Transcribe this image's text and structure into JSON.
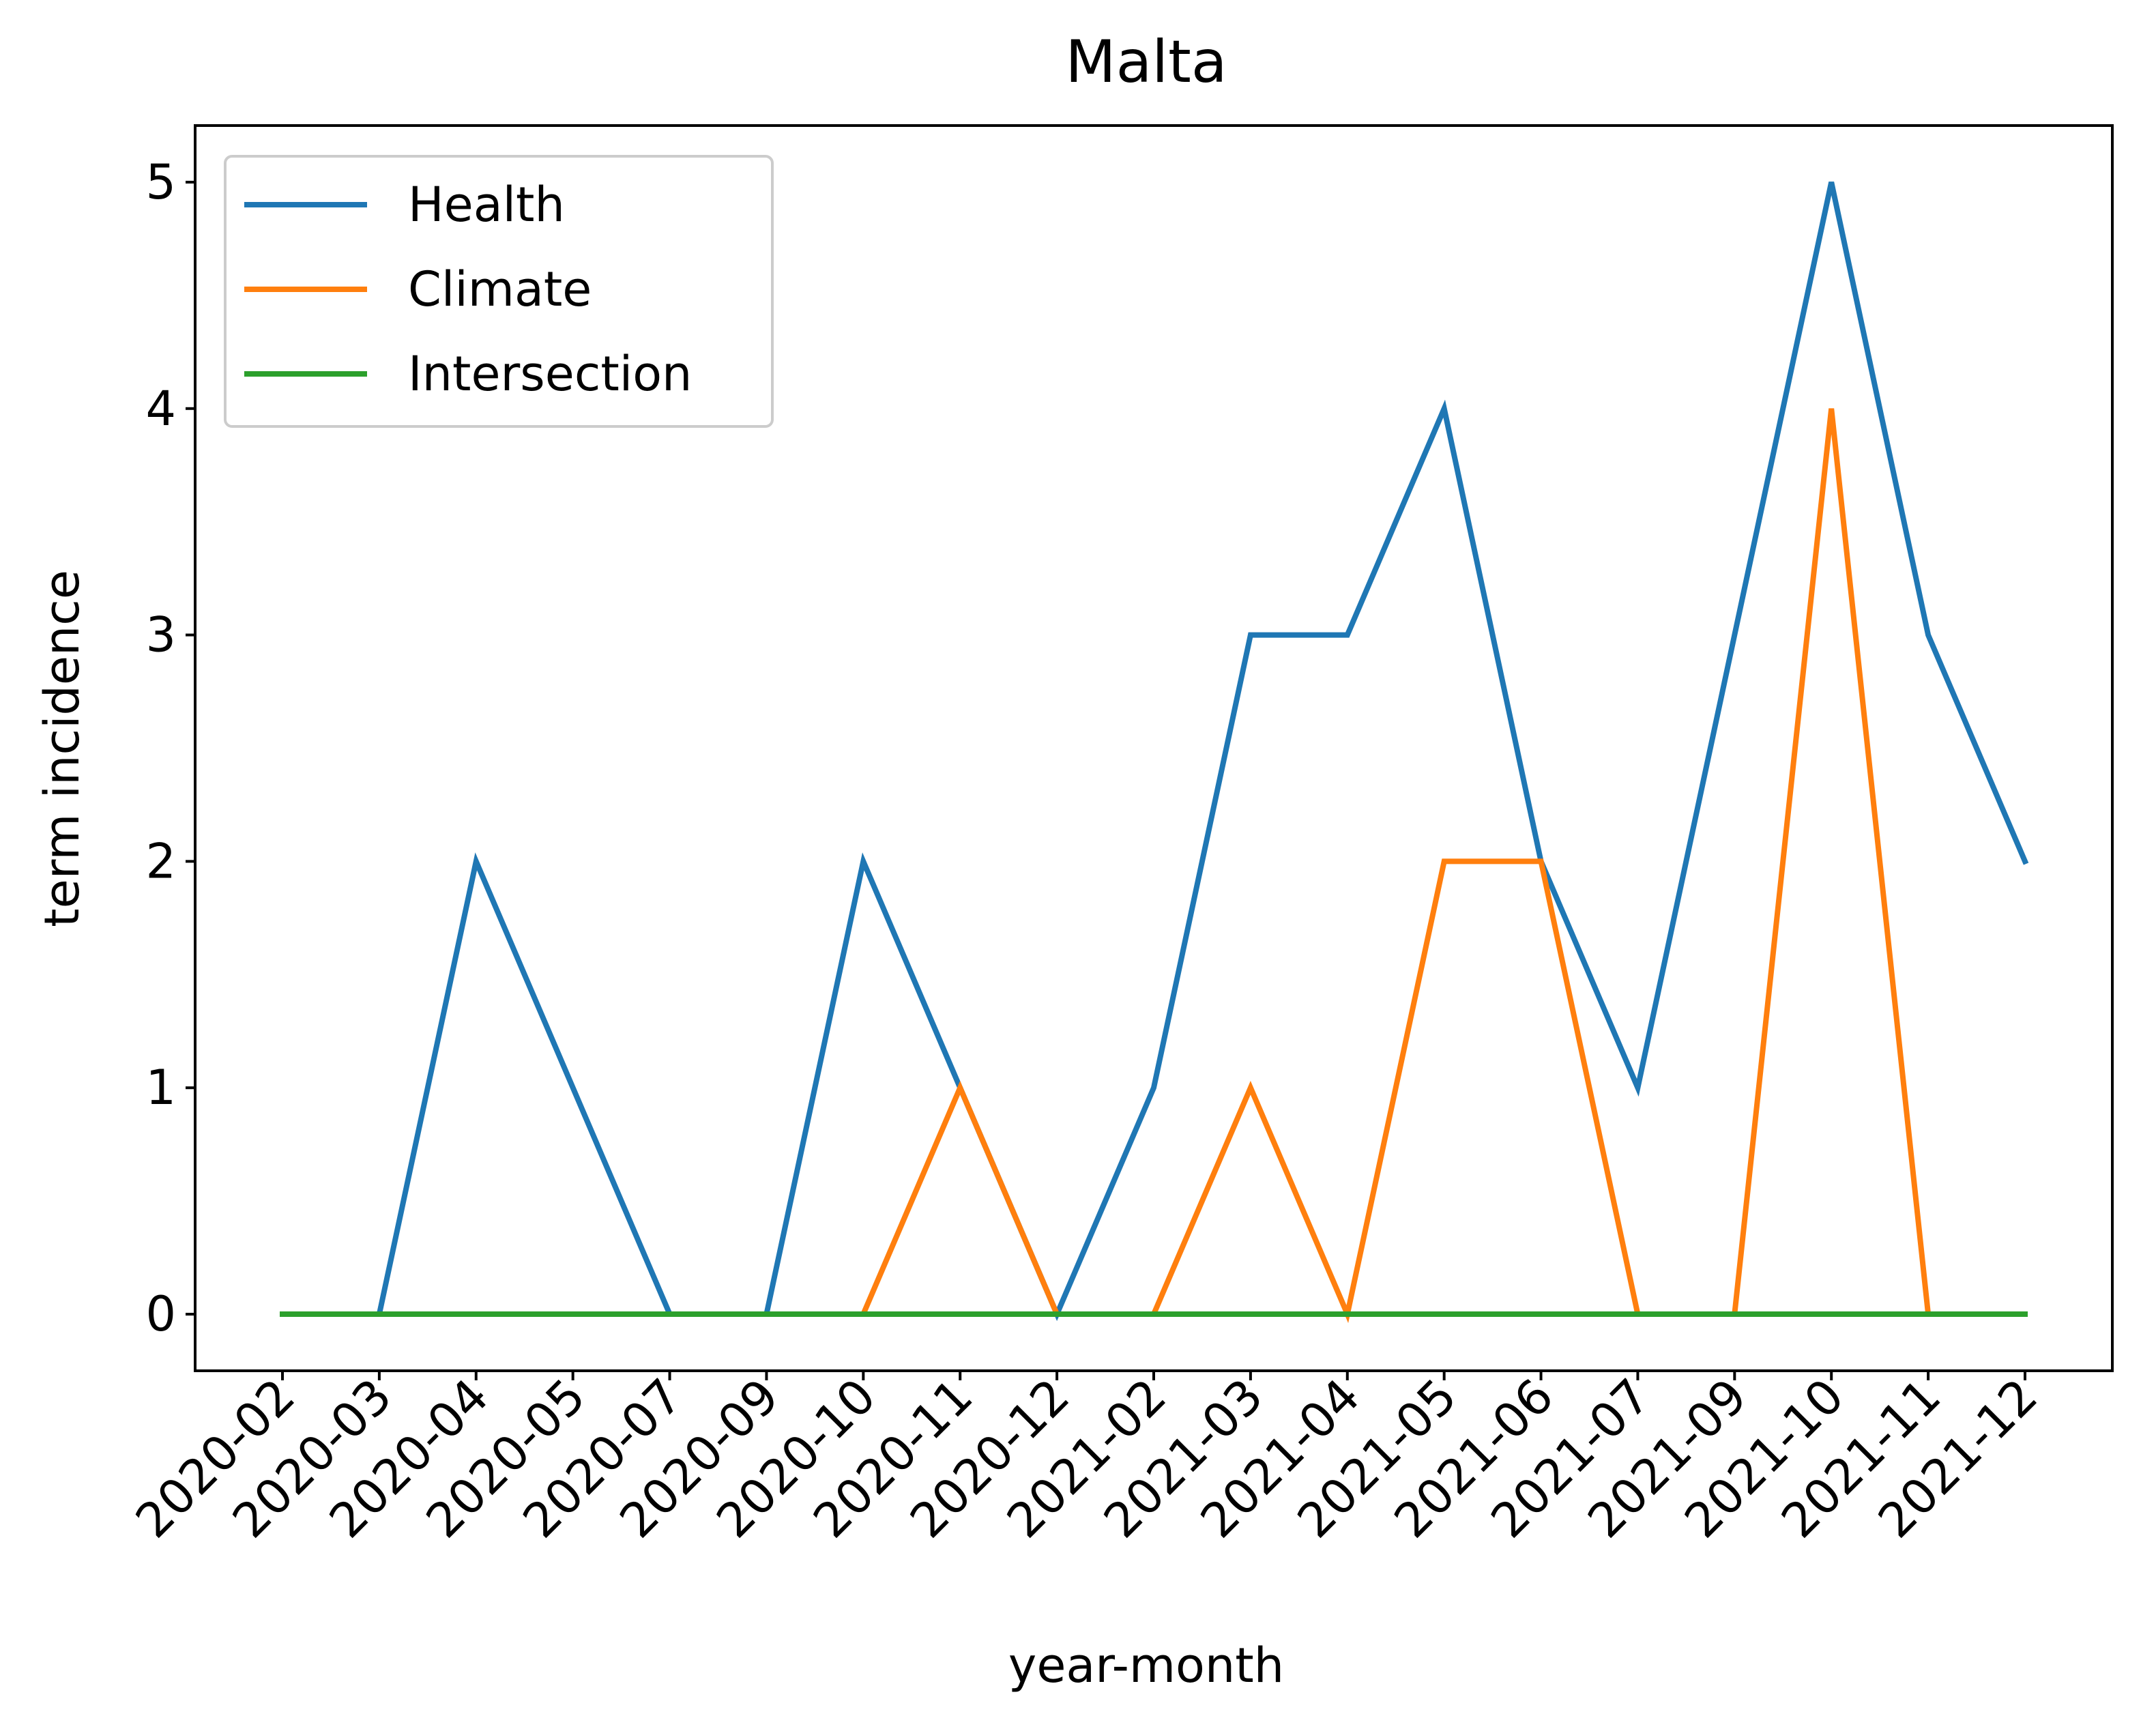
{
  "chart_data": {
    "type": "line",
    "title": "Malta",
    "xlabel": "year-month",
    "ylabel": "term incidence",
    "categories": [
      "2020-02",
      "2020-03",
      "2020-04",
      "2020-05",
      "2020-07",
      "2020-09",
      "2020-10",
      "2020-11",
      "2020-12",
      "2021-02",
      "2021-03",
      "2021-04",
      "2021-05",
      "2021-06",
      "2021-07",
      "2021-09",
      "2021-10",
      "2021-11",
      "2021-12"
    ],
    "yticks": [
      0,
      1,
      2,
      3,
      4,
      5
    ],
    "ylim": [
      -0.25,
      5.25
    ],
    "grid": false,
    "legend_position": "upper-left",
    "series": [
      {
        "name": "Health",
        "color": "#1f77b4",
        "values": [
          0,
          0,
          2,
          1,
          0,
          0,
          2,
          1,
          0,
          1,
          3,
          3,
          4,
          2,
          1,
          3,
          5,
          3,
          2
        ]
      },
      {
        "name": "Climate",
        "color": "#ff7f0e",
        "values": [
          0,
          0,
          0,
          0,
          0,
          0,
          0,
          1,
          0,
          0,
          1,
          0,
          2,
          2,
          0,
          0,
          4,
          0,
          0
        ]
      },
      {
        "name": "Intersection",
        "color": "#2ca02c",
        "values": [
          0,
          0,
          0,
          0,
          0,
          0,
          0,
          0,
          0,
          0,
          0,
          0,
          0,
          0,
          0,
          0,
          0,
          0,
          0
        ]
      }
    ]
  }
}
